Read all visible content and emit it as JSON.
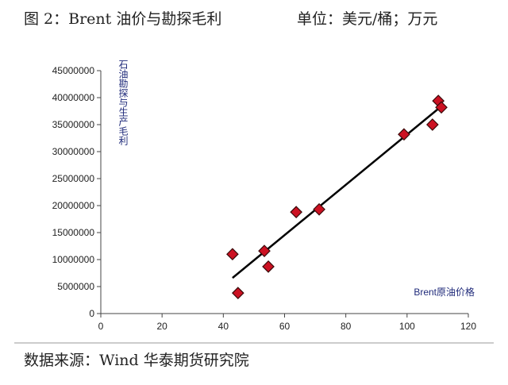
{
  "chart_data": {
    "type": "scatter",
    "title": "图 2：Brent 油价与勘探毛利",
    "unit": "单位：美元/桶；万元",
    "source": "数据来源：Wind 华泰期货研究院",
    "y_label": "石油勘探与生产毛利",
    "x_label": "Brent原油价格",
    "series": [
      {
        "color": "#cc1122",
        "x": [
          43.0,
          44.8,
          53.4,
          54.7,
          63.8,
          71.3,
          99.0,
          108.3,
          110.2,
          111.2
        ],
        "values": [
          11000000,
          3800000,
          11600000,
          8700000,
          18800000,
          19300000,
          33200000,
          35000000,
          39400000,
          38200000
        ]
      }
    ],
    "trendline": {
      "color": "#000000",
      "x": [
        43.0,
        111.2
      ],
      "values": [
        6600000,
        38400000
      ]
    },
    "xlim": [
      0,
      120
    ],
    "xticks": [
      0,
      20,
      40,
      60,
      80,
      100,
      120
    ],
    "ylim": [
      0,
      45000000
    ],
    "yticks": [
      0,
      5000000,
      10000000,
      15000000,
      20000000,
      25000000,
      30000000,
      35000000,
      40000000,
      45000000
    ]
  }
}
